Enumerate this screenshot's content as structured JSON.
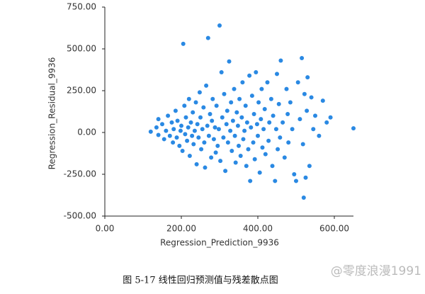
{
  "chart_data": {
    "type": "scatter",
    "x_label": "Regression_Prediction_9936",
    "y_label": "Regression_Residual_9936",
    "caption": "图 5-17 线性回归预测值与残差散点图",
    "watermark": "@零度浪漫1991",
    "color": "#2a89e3",
    "xlim": [
      0,
      650
    ],
    "ylim": [
      -500,
      750
    ],
    "xticks": [
      {
        "value": 0,
        "label": "0.00"
      },
      {
        "value": 200,
        "label": "200.00"
      },
      {
        "value": 400,
        "label": "400.00"
      },
      {
        "value": 600,
        "label": "600.00"
      }
    ],
    "yticks": [
      {
        "value": -500,
        "label": "-500.00"
      },
      {
        "value": -250,
        "label": "-250.00"
      },
      {
        "value": 0,
        "label": "0.00"
      },
      {
        "value": 250,
        "label": "250.00"
      },
      {
        "value": 500,
        "label": "500.00"
      },
      {
        "value": 750,
        "label": "750.00"
      }
    ],
    "x": [
      120,
      135,
      140,
      140,
      150,
      155,
      160,
      165,
      170,
      175,
      178,
      180,
      185,
      188,
      190,
      195,
      198,
      200,
      203,
      205,
      208,
      210,
      212,
      215,
      218,
      220,
      222,
      225,
      228,
      230,
      232,
      235,
      238,
      240,
      242,
      245,
      248,
      250,
      252,
      255,
      258,
      260,
      262,
      265,
      268,
      270,
      272,
      275,
      278,
      280,
      282,
      285,
      288,
      290,
      292,
      295,
      298,
      300,
      302,
      305,
      307,
      310,
      312,
      315,
      318,
      320,
      322,
      325,
      328,
      330,
      332,
      335,
      338,
      340,
      342,
      345,
      348,
      350,
      352,
      355,
      358,
      360,
      362,
      365,
      368,
      370,
      372,
      375,
      378,
      380,
      382,
      385,
      388,
      390,
      392,
      395,
      398,
      400,
      402,
      405,
      408,
      410,
      412,
      415,
      418,
      420,
      425,
      428,
      430,
      435,
      438,
      440,
      445,
      448,
      450,
      452,
      455,
      458,
      460,
      465,
      470,
      475,
      478,
      480,
      485,
      490,
      495,
      500,
      505,
      510,
      515,
      518,
      520,
      522,
      525,
      528,
      530,
      535,
      540,
      545,
      550,
      560,
      570,
      580,
      590,
      650
    ],
    "values": [
      5,
      30,
      80,
      -15,
      50,
      -40,
      10,
      100,
      -20,
      60,
      -60,
      20,
      130,
      -30,
      70,
      -80,
      10,
      40,
      -110,
      530,
      160,
      -10,
      90,
      -50,
      30,
      200,
      -140,
      60,
      -20,
      120,
      -70,
      10,
      180,
      -190,
      50,
      -30,
      240,
      90,
      -100,
      20,
      150,
      -60,
      -210,
      280,
      40,
      565,
      -20,
      110,
      -150,
      70,
      200,
      -40,
      30,
      -120,
      160,
      -80,
      20,
      640,
      -170,
      360,
      90,
      -30,
      230,
      -230,
      50,
      130,
      -60,
      425,
      10,
      180,
      -110,
      70,
      260,
      -20,
      -180,
      120,
      40,
      -80,
      200,
      -140,
      90,
      300,
      -40,
      10,
      160,
      -200,
      60,
      -100,
      340,
      -290,
      30,
      220,
      -60,
      110,
      -160,
      360,
      50,
      -20,
      180,
      -240,
      80,
      260,
      -90,
      20,
      140,
      -130,
      300,
      -50,
      60,
      200,
      -200,
      100,
      -290,
      20,
      350,
      -100,
      170,
      -30,
      430,
      60,
      -150,
      260,
      110,
      -60,
      180,
      20,
      -250,
      -290,
      300,
      80,
      445,
      -70,
      -390,
      230,
      -270,
      130,
      330,
      -200,
      210,
      20,
      100,
      -20,
      190,
      60,
      90,
      25
    ]
  }
}
